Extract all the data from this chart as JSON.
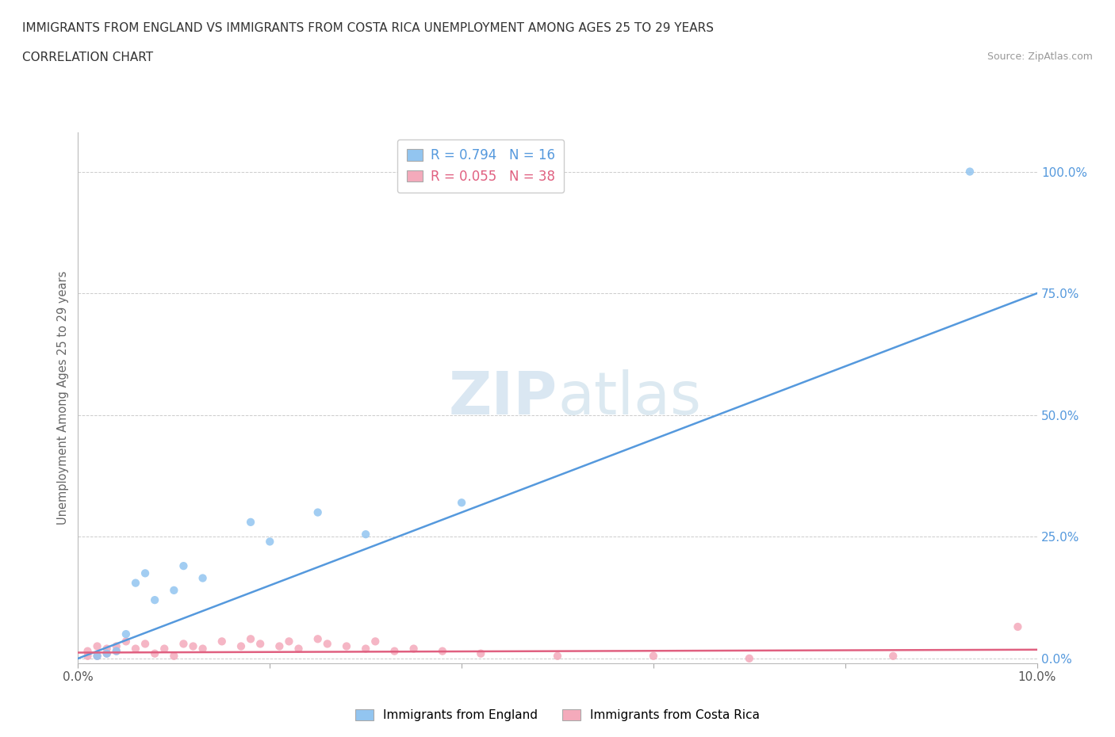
{
  "title_line1": "IMMIGRANTS FROM ENGLAND VS IMMIGRANTS FROM COSTA RICA UNEMPLOYMENT AMONG AGES 25 TO 29 YEARS",
  "title_line2": "CORRELATION CHART",
  "source_text": "Source: ZipAtlas.com",
  "ylabel": "Unemployment Among Ages 25 to 29 years",
  "england_R": 0.794,
  "england_N": 16,
  "costarica_R": 0.055,
  "costarica_N": 38,
  "england_color": "#92C5F0",
  "costarica_color": "#F4AABB",
  "england_line_color": "#5599DD",
  "costarica_line_color": "#E06080",
  "england_x": [
    0.002,
    0.003,
    0.004,
    0.005,
    0.006,
    0.007,
    0.008,
    0.01,
    0.011,
    0.013,
    0.018,
    0.02,
    0.025,
    0.03,
    0.04,
    0.093
  ],
  "england_y": [
    0.005,
    0.01,
    0.015,
    0.05,
    0.155,
    0.175,
    0.12,
    0.14,
    0.19,
    0.165,
    0.28,
    0.24,
    0.3,
    0.255,
    0.32,
    1.0
  ],
  "costarica_x": [
    0.001,
    0.001,
    0.002,
    0.002,
    0.003,
    0.003,
    0.004,
    0.004,
    0.005,
    0.006,
    0.007,
    0.008,
    0.009,
    0.01,
    0.011,
    0.012,
    0.013,
    0.015,
    0.017,
    0.018,
    0.019,
    0.021,
    0.022,
    0.023,
    0.025,
    0.026,
    0.028,
    0.03,
    0.031,
    0.033,
    0.035,
    0.038,
    0.042,
    0.05,
    0.06,
    0.07,
    0.085,
    0.098
  ],
  "costarica_y": [
    0.005,
    0.015,
    0.005,
    0.025,
    0.02,
    0.01,
    0.015,
    0.025,
    0.035,
    0.02,
    0.03,
    0.01,
    0.02,
    0.005,
    0.03,
    0.025,
    0.02,
    0.035,
    0.025,
    0.04,
    0.03,
    0.025,
    0.035,
    0.02,
    0.04,
    0.03,
    0.025,
    0.02,
    0.035,
    0.015,
    0.02,
    0.015,
    0.01,
    0.005,
    0.005,
    0.0,
    0.005,
    0.065
  ],
  "eng_line_x": [
    0.0,
    0.1
  ],
  "eng_line_y": [
    0.0,
    0.75
  ],
  "cr_line_x": [
    0.0,
    0.1
  ],
  "cr_line_y": [
    0.012,
    0.018
  ],
  "xlim": [
    0.0,
    0.1
  ],
  "ylim": [
    -0.01,
    1.08
  ],
  "xticks": [
    0.0,
    0.02,
    0.04,
    0.06,
    0.08,
    0.1
  ],
  "xticklabels": [
    "0.0%",
    "",
    "",
    "",
    "",
    "10.0%"
  ],
  "ytick_positions": [
    0.0,
    0.25,
    0.5,
    0.75,
    1.0
  ],
  "ytick_labels_right": [
    "0.0%",
    "25.0%",
    "50.0%",
    "75.0%",
    "100.0%"
  ],
  "legend_label_england": "Immigrants from England",
  "legend_label_costarica": "Immigrants from Costa Rica",
  "grid_color": "#CCCCCC",
  "bg_color": "#FFFFFF",
  "title_color": "#333333",
  "axis_label_color": "#666666",
  "tick_label_color_blue": "#5599DD",
  "marker_size": 55
}
